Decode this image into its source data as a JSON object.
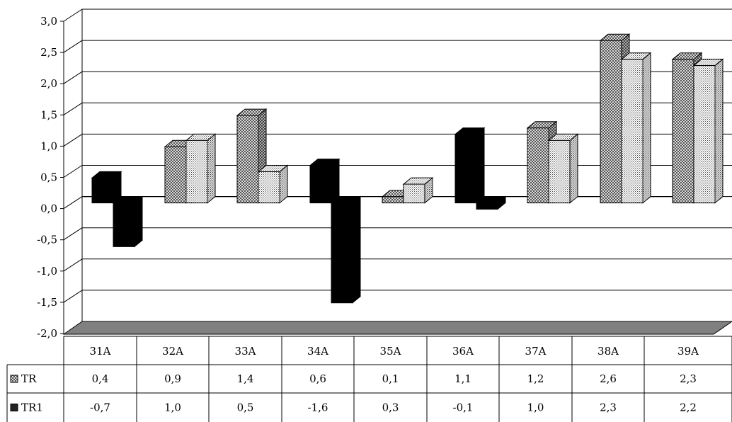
{
  "chart_data": {
    "type": "bar",
    "title": "",
    "xlabel": "",
    "ylabel": "",
    "categories": [
      "31A",
      "32A",
      "33A",
      "34A",
      "35A",
      "36A",
      "37A",
      "38A",
      "39A"
    ],
    "ylim": [
      -2.0,
      3.0
    ],
    "yticks": [
      "3,0",
      "2,5",
      "2,0",
      "1,5",
      "1,0",
      "0,5",
      "0,0",
      "-0,5",
      "-1,0",
      "-1,5",
      "-2,0"
    ],
    "ytick_values": [
      3.0,
      2.5,
      2.0,
      1.5,
      1.0,
      0.5,
      0.0,
      -0.5,
      -1.0,
      -1.5,
      -2.0
    ],
    "grid": true,
    "legend": "data table",
    "series": [
      {
        "name": "TR",
        "values": [
          0.4,
          0.9,
          1.4,
          0.6,
          0.1,
          1.1,
          1.2,
          2.6,
          2.3
        ],
        "table_labels": [
          "0,4",
          "0,9",
          "1,4",
          "0,6",
          "0,1",
          "1,1",
          "1,2",
          "2,6",
          "2,3"
        ]
      },
      {
        "name": "TR1",
        "values": [
          -0.7,
          1.0,
          0.5,
          -1.6,
          0.3,
          -0.1,
          1.0,
          2.3,
          2.2
        ],
        "table_labels": [
          "-0,7",
          "1,0",
          "0,5",
          "-1,6",
          "0,3",
          "-0,1",
          "1,0",
          "2,3",
          "2,2"
        ]
      }
    ],
    "colors": {
      "tr_pattern_bg": "#ffffff",
      "tr_pattern_fg": "#333333",
      "tr1_pattern_bg": "#ffffff",
      "tr1_pattern_fg": "#555555",
      "highlight_fill": "#000000",
      "floor": "#808080",
      "grid": "#000000"
    },
    "highlighted_groups": [
      "31A",
      "34A",
      "36A"
    ]
  }
}
